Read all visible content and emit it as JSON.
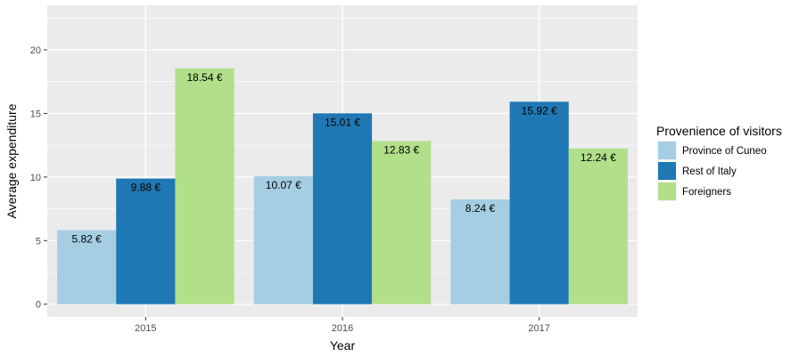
{
  "chart_data": {
    "type": "bar",
    "categories": [
      "2015",
      "2016",
      "2017"
    ],
    "series": [
      {
        "name": "Province of Cuneo",
        "values": [
          5.82,
          10.07,
          8.24
        ],
        "labels": [
          "5.82 €",
          "10.07 €",
          "8.24 €"
        ],
        "color": "#a6cee3"
      },
      {
        "name": "Rest of Italy",
        "values": [
          9.88,
          15.01,
          15.92
        ],
        "labels": [
          "9.88 €",
          "15.01 €",
          "15.92 €"
        ],
        "color": "#1f78b4"
      },
      {
        "name": "Foreigners",
        "values": [
          18.54,
          12.83,
          12.24
        ],
        "labels": [
          "18.54 €",
          "12.83 €",
          "12.24 €"
        ],
        "color": "#b2df8a"
      }
    ],
    "xlabel": "Year",
    "ylabel": "Average expenditure",
    "yticks": [
      "0",
      "5",
      "10",
      "15",
      "20"
    ],
    "ylim": [
      -1,
      23.5
    ],
    "grid": true,
    "legend": {
      "title": "Provenience of visitors",
      "placement": "right"
    },
    "panel_color": "#ebebeb",
    "grid_color": "#ffffff"
  }
}
